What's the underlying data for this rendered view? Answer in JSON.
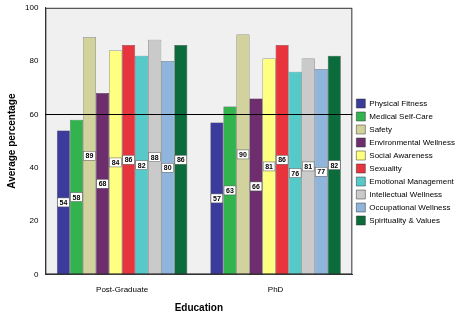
{
  "chart_data": {
    "type": "bar",
    "x_label": "Education",
    "y_label": "Average percentage",
    "categories": [
      "Post-Graduate",
      "PhD"
    ],
    "series": [
      {
        "name": "Physical Fitness",
        "color": "#3b3b9c",
        "values": [
          54,
          57
        ]
      },
      {
        "name": "Medical Self-Care",
        "color": "#33b34d",
        "values": [
          58,
          63
        ]
      },
      {
        "name": "Safety",
        "color": "#d2d29c",
        "values": [
          89,
          90
        ]
      },
      {
        "name": "Environmental Wellness",
        "color": "#6e2e6e",
        "values": [
          68,
          66
        ]
      },
      {
        "name": "Social Awareness",
        "color": "#ffff80",
        "values": [
          84,
          81
        ]
      },
      {
        "name": "Sexuality",
        "color": "#e8343c",
        "values": [
          86,
          86
        ]
      },
      {
        "name": "Emotional Management",
        "color": "#56c9c9",
        "values": [
          82,
          76
        ]
      },
      {
        "name": "Intellectual Wellness",
        "color": "#cacaca",
        "values": [
          88,
          81
        ]
      },
      {
        "name": "Occupational Wellness",
        "color": "#8fb5dd",
        "values": [
          80,
          77
        ]
      },
      {
        "name": "Spirituality & Values",
        "color": "#0b6b3b",
        "values": [
          86,
          82
        ]
      }
    ],
    "ylim": [
      0,
      100
    ],
    "yticks": [
      0,
      20,
      40,
      60,
      80,
      100
    ],
    "reference_line": 60,
    "grid": false,
    "legend": "right",
    "data_labels": true
  }
}
